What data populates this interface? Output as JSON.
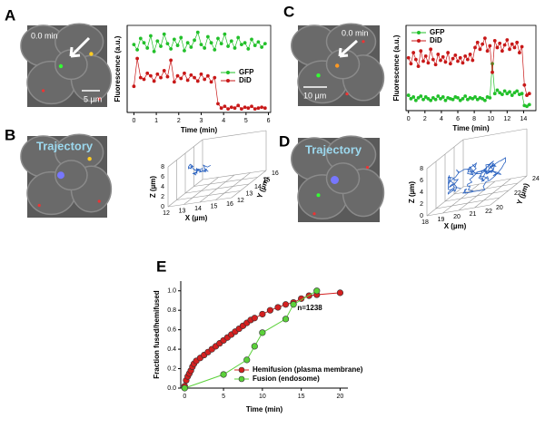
{
  "panel_labels": [
    "A",
    "B",
    "C",
    "D",
    "E"
  ],
  "images": [
    {
      "time": "0.0 min",
      "scale": "5 µm"
    },
    {
      "label": "Trajectory"
    },
    {
      "time": "0.0 min",
      "scale": "10 µm"
    },
    {
      "label": "Trajectory"
    }
  ],
  "trajectories": [
    {
      "xlabel": "X (µm)",
      "ylabel": "Y (µm)",
      "zlabel": "Z (µm)",
      "xticks": [
        "12",
        "13",
        "14",
        "15",
        "16"
      ],
      "yticks": [
        "12",
        "13",
        "14",
        "15",
        "16"
      ],
      "zticks": [
        "0",
        "2",
        "4",
        "6",
        "8"
      ]
    },
    {
      "xlabel": "X (µm)",
      "ylabel": "Y (µm)",
      "zlabel": "Z (µm)",
      "xticks": [
        "18",
        "19",
        "20",
        "21",
        "22"
      ],
      "yticks": [
        "20",
        "22",
        "24"
      ],
      "zticks": [
        "0",
        "2",
        "4",
        "6",
        "8"
      ]
    }
  ],
  "chart_data": [
    {
      "type": "line",
      "xlabel": "Time (min)",
      "ylabel": "Fluorescence (a.u.)",
      "xlim": [
        -0.3,
        6.1
      ],
      "ylim": [
        0,
        1
      ],
      "xticks": [
        0,
        1,
        2,
        3,
        4,
        5,
        6
      ],
      "legend": "center right",
      "x": [
        0,
        0.15,
        0.3,
        0.45,
        0.6,
        0.75,
        0.9,
        1.05,
        1.2,
        1.35,
        1.5,
        1.65,
        1.8,
        1.95,
        2.1,
        2.25,
        2.4,
        2.55,
        2.7,
        2.85,
        3,
        3.15,
        3.3,
        3.45,
        3.6,
        3.75,
        3.9,
        4.05,
        4.2,
        4.35,
        4.5,
        4.65,
        4.8,
        4.95,
        5.1,
        5.25,
        5.4,
        5.55,
        5.7,
        5.85
      ],
      "series": [
        {
          "name": "GFP",
          "color": "#22c02a",
          "values": [
            0.78,
            0.72,
            0.85,
            0.8,
            0.74,
            0.88,
            0.7,
            0.82,
            0.76,
            0.9,
            0.79,
            0.73,
            0.84,
            0.77,
            0.86,
            0.71,
            0.8,
            0.75,
            0.83,
            0.92,
            0.78,
            0.74,
            0.87,
            0.8,
            0.72,
            0.85,
            0.79,
            0.9,
            0.76,
            0.82,
            0.74,
            0.86,
            0.78,
            0.8,
            0.73,
            0.84,
            0.77,
            0.81,
            0.75,
            0.79
          ]
        },
        {
          "name": "DiD",
          "color": "#c81818",
          "values": [
            0.3,
            0.62,
            0.4,
            0.38,
            0.45,
            0.42,
            0.36,
            0.44,
            0.4,
            0.48,
            0.41,
            0.6,
            0.35,
            0.42,
            0.39,
            0.45,
            0.37,
            0.43,
            0.4,
            0.36,
            0.44,
            0.38,
            0.42,
            0.35,
            0.4,
            0.1,
            0.05,
            0.07,
            0.04,
            0.06,
            0.05,
            0.08,
            0.04,
            0.06,
            0.05,
            0.07,
            0.04,
            0.05,
            0.06,
            0.05
          ]
        }
      ]
    },
    {
      "type": "line",
      "xlabel": "Time (min)",
      "ylabel": "Fluorescence (a.u.)",
      "xlim": [
        -0.3,
        15.5
      ],
      "ylim": [
        0,
        1
      ],
      "xticks": [
        0,
        2,
        4,
        6,
        8,
        10,
        12,
        14
      ],
      "legend": "upper left",
      "x": [
        0,
        0.3,
        0.6,
        0.9,
        1.2,
        1.5,
        1.8,
        2.1,
        2.4,
        2.7,
        3,
        3.3,
        3.6,
        3.9,
        4.2,
        4.5,
        4.8,
        5.1,
        5.4,
        5.7,
        6,
        6.3,
        6.6,
        6.9,
        7.2,
        7.5,
        7.8,
        8.1,
        8.4,
        8.7,
        9,
        9.3,
        9.6,
        9.9,
        10.2,
        10.5,
        10.8,
        11.1,
        11.4,
        11.7,
        12,
        12.3,
        12.6,
        12.9,
        13.2,
        13.5,
        13.8,
        14.1,
        14.4,
        14.7
      ],
      "series": [
        {
          "name": "GFP",
          "color": "#22c02a",
          "values": [
            0.18,
            0.14,
            0.16,
            0.12,
            0.15,
            0.17,
            0.13,
            0.16,
            0.14,
            0.12,
            0.15,
            0.13,
            0.17,
            0.14,
            0.16,
            0.12,
            0.15,
            0.14,
            0.13,
            0.16,
            0.15,
            0.12,
            0.14,
            0.17,
            0.13,
            0.15,
            0.14,
            0.16,
            0.13,
            0.15,
            0.14,
            0.12,
            0.16,
            0.15,
            0.55,
            0.2,
            0.24,
            0.21,
            0.19,
            0.23,
            0.2,
            0.22,
            0.18,
            0.21,
            0.23,
            0.19,
            0.2,
            0.06,
            0.05,
            0.07
          ]
        },
        {
          "name": "DiD",
          "color": "#c81818",
          "values": [
            0.62,
            0.55,
            0.68,
            0.6,
            0.52,
            0.7,
            0.58,
            0.64,
            0.56,
            0.72,
            0.6,
            0.54,
            0.66,
            0.59,
            0.63,
            0.57,
            0.68,
            0.55,
            0.61,
            0.65,
            0.58,
            0.62,
            0.56,
            0.64,
            0.6,
            0.66,
            0.59,
            0.74,
            0.8,
            0.72,
            0.78,
            0.85,
            0.7,
            0.76,
            0.45,
            0.82,
            0.74,
            0.79,
            0.7,
            0.77,
            0.83,
            0.72,
            0.78,
            0.74,
            0.8,
            0.68,
            0.75,
            0.3,
            0.18,
            0.2
          ]
        }
      ]
    },
    {
      "type": "line",
      "xlabel": "Time (min)",
      "ylabel": "Fraction fused/hemifused",
      "xlim": [
        -0.5,
        21
      ],
      "ylim": [
        0,
        1.1
      ],
      "xticks": [
        0,
        5,
        10,
        15,
        20
      ],
      "yticks": [
        {
          "value": 0,
          "label": "0.0"
        },
        {
          "value": 0.2,
          "label": "0.2"
        },
        {
          "value": 0.4,
          "label": "0.4"
        },
        {
          "value": 0.6,
          "label": "0.6"
        },
        {
          "value": 0.8,
          "label": "0.8"
        },
        {
          "value": 1,
          "label": "1.0"
        }
      ],
      "legend": "lower right",
      "annotation": "n=1238",
      "series": [
        {
          "name": "Hemifusion (plasma membrane)",
          "color": "#d42020",
          "x": [
            0,
            0.2,
            0.4,
            0.6,
            0.8,
            1,
            1.2,
            1.5,
            2,
            2.5,
            3,
            3.5,
            4,
            4.5,
            5,
            5.5,
            6,
            6.5,
            7,
            7.5,
            8,
            8.5,
            9,
            10,
            11,
            12,
            13,
            14,
            15,
            16,
            17,
            20
          ],
          "values": [
            0.02,
            0.08,
            0.12,
            0.15,
            0.18,
            0.22,
            0.25,
            0.28,
            0.31,
            0.34,
            0.37,
            0.4,
            0.43,
            0.46,
            0.49,
            0.52,
            0.55,
            0.58,
            0.61,
            0.64,
            0.67,
            0.7,
            0.72,
            0.76,
            0.8,
            0.83,
            0.86,
            0.88,
            0.92,
            0.95,
            0.96,
            0.98
          ]
        },
        {
          "name": "Fusion (endosome)",
          "color": "#5bd13a",
          "x": [
            0,
            5,
            8,
            9,
            10,
            13,
            14,
            17
          ],
          "values": [
            0,
            0.14,
            0.29,
            0.43,
            0.57,
            0.71,
            0.86,
            1
          ]
        }
      ]
    }
  ]
}
